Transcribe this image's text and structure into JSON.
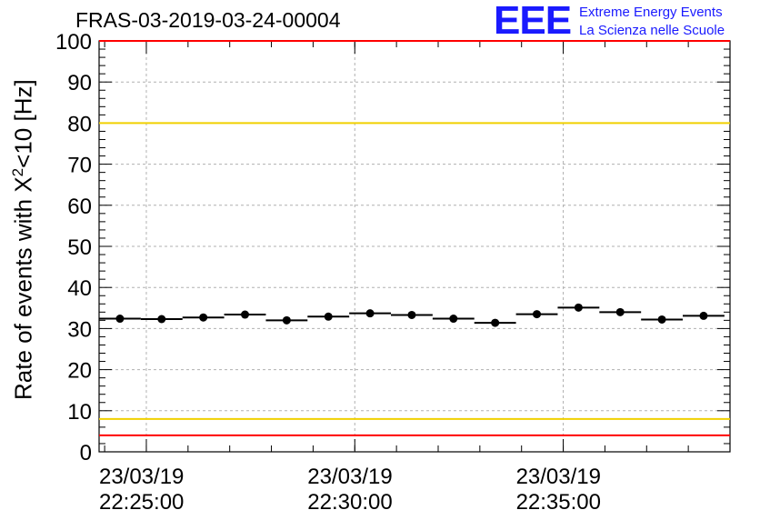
{
  "title": "FRAS-03-2019-03-24-00004",
  "logo": {
    "mark": "EEE",
    "line1": "Extreme Energy Events",
    "line2": "La Scienza nelle Scuole"
  },
  "ylabel": {
    "prefix": "Rate of events with X",
    "sup": "2",
    "suffix": "<10 [Hz]"
  },
  "colors": {
    "red_line": "#ff0000",
    "yellow_line": "#f0d000",
    "grid": "#b0b0b0",
    "logo": "#1a1aff"
  },
  "chart_data": {
    "type": "scatter",
    "title": "FRAS-03-2019-03-24-00004",
    "ylabel": "Rate of events with X2<10 [Hz]",
    "ylim": [
      0,
      100
    ],
    "yticks": [
      0,
      10,
      20,
      30,
      40,
      50,
      60,
      70,
      80,
      90,
      100
    ],
    "xlim": [
      "23/03/19 22:23:52",
      "23/03/19 22:39:00"
    ],
    "xticks": [
      {
        "date": "23/03/19",
        "time": "22:25:00"
      },
      {
        "date": "23/03/19",
        "time": "22:30:00"
      },
      {
        "date": "23/03/19",
        "time": "22:35:00"
      }
    ],
    "grid": true,
    "bin_width_s": 60,
    "series": [
      {
        "x": [
          "22:24:22",
          "22:25:22",
          "22:26:22",
          "22:27:22",
          "22:28:22",
          "22:29:22",
          "22:30:22",
          "22:31:22",
          "22:32:22",
          "22:33:22",
          "22:34:22",
          "22:35:22",
          "22:36:22",
          "22:37:22",
          "22:38:22"
        ],
        "values": [
          32.4,
          32.3,
          32.7,
          33.4,
          32.0,
          32.9,
          33.7,
          33.3,
          32.4,
          31.4,
          33.5,
          35.1,
          34.0,
          32.2,
          33.1
        ]
      }
    ],
    "reference_lines": [
      {
        "y": 80,
        "color": "#f0d000"
      },
      {
        "y": 8,
        "color": "#f0d000"
      },
      {
        "y": 100,
        "color": "#ff0000"
      },
      {
        "y": 4,
        "color": "#ff0000"
      }
    ]
  }
}
